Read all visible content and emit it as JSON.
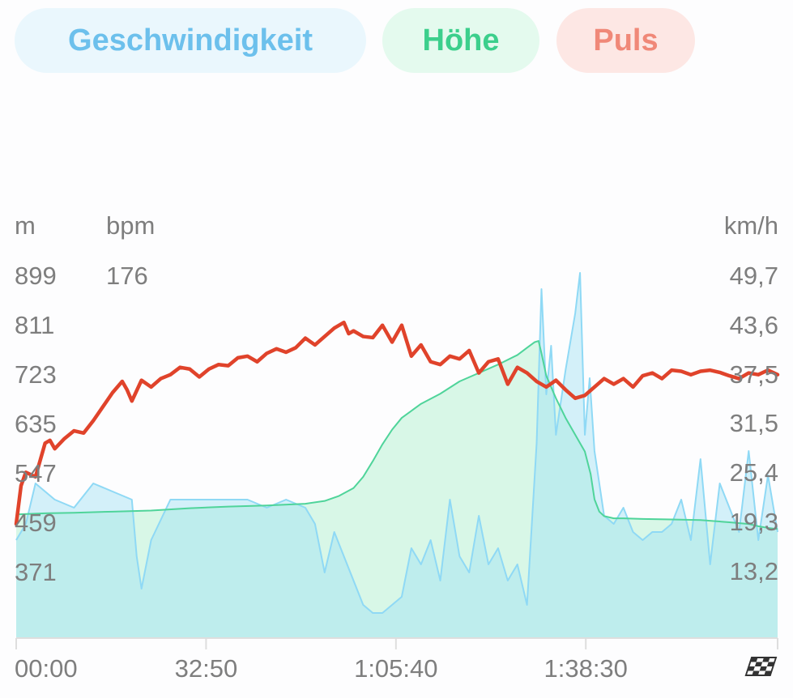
{
  "tabs": {
    "speed": "Geschwindigkeit",
    "altitude": "Höhe",
    "heart_rate": "Puls"
  },
  "colors": {
    "speed": "#8fd9f5",
    "altitude": "#4fd49a",
    "heart_rate": "#e0432b",
    "grid_axis": "#dedede",
    "label": "#7e7e7e"
  },
  "finish_icon": "checkered-flag-icon",
  "chart_data": {
    "type": "line",
    "xlabel": "",
    "x_ticks": [
      "00:00",
      "32:50",
      "1:05:40",
      "1:38:30"
    ],
    "x_tick_seconds": [
      0,
      1970,
      3940,
      5910
    ],
    "x_range_seconds": [
      0,
      7900
    ],
    "y_left_unit": "m",
    "y_left_ticks": [
      899,
      811,
      723,
      635,
      547,
      459,
      371
    ],
    "y_left_range": [
      283,
      899
    ],
    "y_hr_unit": "bpm",
    "y_hr_ticks": [
      176
    ],
    "y_right_unit": "km/h",
    "y_right_ticks": [
      "49,7",
      "43,6",
      "37,5",
      "31,5",
      "25,4",
      "19,3",
      "13,2"
    ],
    "y_right_values": [
      49.7,
      43.6,
      37.5,
      31.5,
      25.4,
      19.3,
      13.2
    ],
    "y_right_range": [
      7.1,
      49.7
    ],
    "series": [
      {
        "name": "Höhe",
        "axis": "left",
        "fill": true,
        "x": [
          0,
          300,
          600,
          1000,
          1400,
          1800,
          2200,
          2600,
          3000,
          3200,
          3350,
          3500,
          3600,
          3700,
          3800,
          3900,
          4000,
          4200,
          4400,
          4600,
          4800,
          5000,
          5200,
          5300,
          5380,
          5420,
          5450,
          5500,
          5600,
          5700,
          5800,
          5900,
          5960,
          6000,
          6050,
          6100,
          6200,
          6300,
          6500,
          6800,
          7100,
          7400,
          7600,
          7700,
          7800,
          7900
        ],
        "y": [
          473,
          475,
          476,
          478,
          480,
          484,
          487,
          489,
          492,
          497,
          506,
          520,
          540,
          568,
          598,
          624,
          645,
          670,
          688,
          710,
          725,
          740,
          757,
          770,
          780,
          782,
          760,
          720,
          680,
          645,
          615,
          585,
          545,
          500,
          478,
          470,
          466,
          466,
          465,
          464,
          463,
          459,
          456,
          452,
          449,
          447
        ]
      },
      {
        "name": "Geschwindigkeit",
        "axis": "right",
        "fill": true,
        "x": [
          0,
          100,
          200,
          400,
          600,
          800,
          1000,
          1200,
          1250,
          1300,
          1400,
          1600,
          1800,
          2000,
          2200,
          2400,
          2600,
          2800,
          3000,
          3100,
          3200,
          3300,
          3400,
          3500,
          3600,
          3700,
          3800,
          3900,
          4000,
          4100,
          4200,
          4300,
          4400,
          4500,
          4600,
          4700,
          4800,
          4900,
          5000,
          5100,
          5200,
          5300,
          5400,
          5450,
          5500,
          5550,
          5600,
          5700,
          5800,
          5850,
          5900,
          5950,
          6000,
          6100,
          6200,
          6300,
          6400,
          6500,
          6600,
          6700,
          6800,
          6900,
          7000,
          7100,
          7200,
          7300,
          7400,
          7500,
          7600,
          7700,
          7800,
          7900
        ],
        "y": [
          17,
          19,
          24,
          22,
          21,
          24,
          23,
          22,
          15,
          11,
          17,
          22,
          22,
          22,
          22,
          22,
          21,
          22,
          21,
          19,
          13,
          18,
          15,
          12,
          9,
          8,
          8,
          9,
          10,
          16,
          14,
          17,
          12,
          22,
          15,
          13,
          20,
          14,
          16,
          12,
          14,
          9,
          29,
          48,
          35,
          41,
          30,
          38,
          45,
          50,
          30,
          37,
          28,
          20,
          19,
          21,
          18,
          17,
          18,
          18,
          19,
          22,
          17,
          27,
          14,
          24,
          21,
          18,
          28,
          17,
          25,
          18
        ]
      },
      {
        "name": "Puls",
        "axis": "hr",
        "x": [
          0,
          50,
          100,
          200,
          300,
          350,
          400,
          500,
          600,
          700,
          800,
          900,
          1000,
          1100,
          1150,
          1200,
          1300,
          1400,
          1500,
          1600,
          1700,
          1800,
          1900,
          2000,
          2100,
          2200,
          2300,
          2400,
          2500,
          2600,
          2700,
          2800,
          2900,
          3000,
          3100,
          3200,
          3300,
          3400,
          3450,
          3500,
          3600,
          3700,
          3800,
          3900,
          4000,
          4100,
          4200,
          4300,
          4400,
          4500,
          4600,
          4700,
          4800,
          4900,
          5000,
          5100,
          5150,
          5200,
          5300,
          5400,
          5500,
          5600,
          5700,
          5800,
          5900,
          6000,
          6100,
          6200,
          6300,
          6400,
          6500,
          6600,
          6700,
          6800,
          6900,
          7000,
          7100,
          7200,
          7300,
          7400,
          7500,
          7600,
          7700,
          7800,
          7900
        ],
        "y": [
          456,
          524,
          548,
          540,
          600,
          605,
          590,
          608,
          622,
          618,
          640,
          665,
          690,
          710,
          695,
          675,
          712,
          700,
          715,
          722,
          735,
          732,
          718,
          732,
          740,
          738,
          752,
          755,
          745,
          760,
          768,
          762,
          770,
          787,
          775,
          790,
          805,
          815,
          795,
          800,
          790,
          788,
          810,
          780,
          810,
          755,
          775,
          745,
          740,
          755,
          750,
          765,
          725,
          745,
          750,
          705,
          720,
          735,
          725,
          710,
          700,
          712,
          695,
          680,
          685,
          700,
          715,
          705,
          715,
          700,
          720,
          725,
          715,
          730,
          728,
          722,
          728,
          730,
          726,
          720,
          715,
          725,
          722,
          730,
          722
        ]
      }
    ]
  }
}
